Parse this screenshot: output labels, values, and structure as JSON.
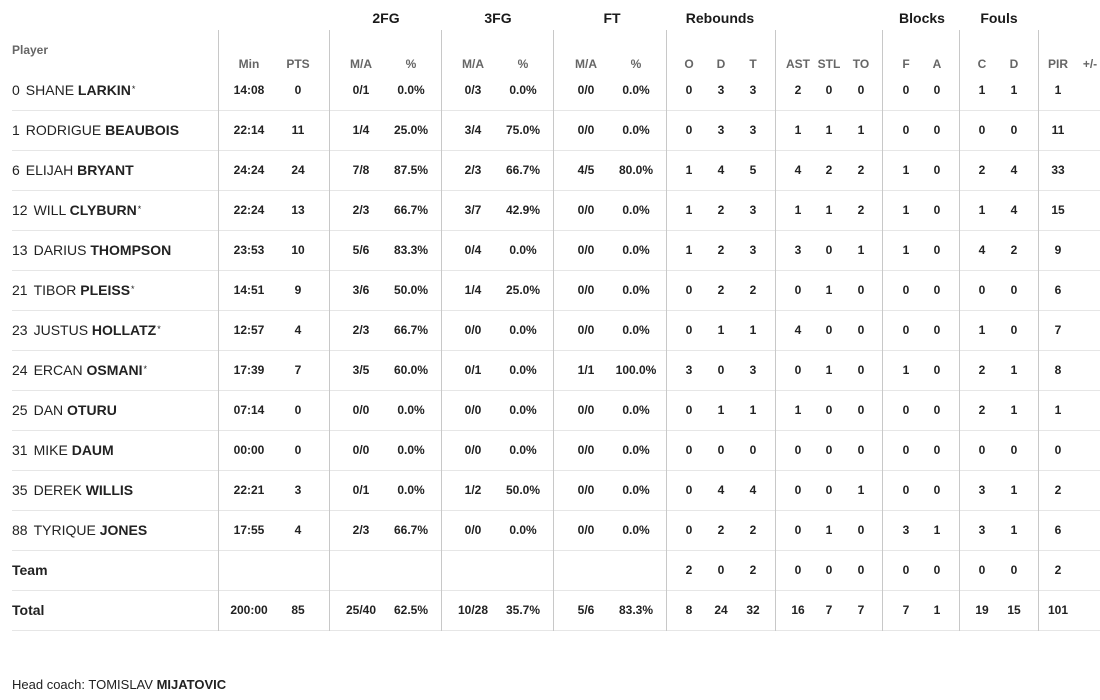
{
  "groups": {
    "fg2": "2FG",
    "fg3": "3FG",
    "ft": "FT",
    "reb": "Rebounds",
    "blk": "Blocks",
    "fls": "Fouls"
  },
  "headers": {
    "player": "Player",
    "min": "Min",
    "pts": "PTS",
    "fg2_ma": "M/A",
    "fg2_pct": "%",
    "fg3_ma": "M/A",
    "fg3_pct": "%",
    "ft_ma": "M/A",
    "ft_pct": "%",
    "o": "O",
    "d": "D",
    "t": "T",
    "ast": "AST",
    "stl": "STL",
    "to": "TO",
    "bf": "F",
    "ba": "A",
    "fc": "C",
    "fd": "D",
    "pir": "PIR",
    "pm": "+/-"
  },
  "players": [
    {
      "num": "0",
      "first": "Shane",
      "last": "Larkin",
      "star": "*",
      "min": "14:08",
      "pts": "0",
      "fg2_ma": "0/1",
      "fg2_pct": "0.0%",
      "fg3_ma": "0/3",
      "fg3_pct": "0.0%",
      "ft_ma": "0/0",
      "ft_pct": "0.0%",
      "o": "0",
      "d": "3",
      "t": "3",
      "ast": "2",
      "stl": "0",
      "to": "0",
      "bf": "0",
      "ba": "0",
      "fc": "1",
      "fd": "1",
      "pir": "1",
      "pm": ""
    },
    {
      "num": "1",
      "first": "Rodrigue",
      "last": "Beaubois",
      "star": "",
      "min": "22:14",
      "pts": "11",
      "fg2_ma": "1/4",
      "fg2_pct": "25.0%",
      "fg3_ma": "3/4",
      "fg3_pct": "75.0%",
      "ft_ma": "0/0",
      "ft_pct": "0.0%",
      "o": "0",
      "d": "3",
      "t": "3",
      "ast": "1",
      "stl": "1",
      "to": "1",
      "bf": "0",
      "ba": "0",
      "fc": "0",
      "fd": "0",
      "pir": "11",
      "pm": ""
    },
    {
      "num": "6",
      "first": "Elijah",
      "last": "Bryant",
      "star": "",
      "min": "24:24",
      "pts": "24",
      "fg2_ma": "7/8",
      "fg2_pct": "87.5%",
      "fg3_ma": "2/3",
      "fg3_pct": "66.7%",
      "ft_ma": "4/5",
      "ft_pct": "80.0%",
      "o": "1",
      "d": "4",
      "t": "5",
      "ast": "4",
      "stl": "2",
      "to": "2",
      "bf": "1",
      "ba": "0",
      "fc": "2",
      "fd": "4",
      "pir": "33",
      "pm": ""
    },
    {
      "num": "12",
      "first": "Will",
      "last": "Clyburn",
      "star": "*",
      "min": "22:24",
      "pts": "13",
      "fg2_ma": "2/3",
      "fg2_pct": "66.7%",
      "fg3_ma": "3/7",
      "fg3_pct": "42.9%",
      "ft_ma": "0/0",
      "ft_pct": "0.0%",
      "o": "1",
      "d": "2",
      "t": "3",
      "ast": "1",
      "stl": "1",
      "to": "2",
      "bf": "1",
      "ba": "0",
      "fc": "1",
      "fd": "4",
      "pir": "15",
      "pm": ""
    },
    {
      "num": "13",
      "first": "Darius",
      "last": "Thompson",
      "star": "",
      "min": "23:53",
      "pts": "10",
      "fg2_ma": "5/6",
      "fg2_pct": "83.3%",
      "fg3_ma": "0/4",
      "fg3_pct": "0.0%",
      "ft_ma": "0/0",
      "ft_pct": "0.0%",
      "o": "1",
      "d": "2",
      "t": "3",
      "ast": "3",
      "stl": "0",
      "to": "1",
      "bf": "1",
      "ba": "0",
      "fc": "4",
      "fd": "2",
      "pir": "9",
      "pm": ""
    },
    {
      "num": "21",
      "first": "Tibor",
      "last": "Pleiss",
      "star": "*",
      "min": "14:51",
      "pts": "9",
      "fg2_ma": "3/6",
      "fg2_pct": "50.0%",
      "fg3_ma": "1/4",
      "fg3_pct": "25.0%",
      "ft_ma": "0/0",
      "ft_pct": "0.0%",
      "o": "0",
      "d": "2",
      "t": "2",
      "ast": "0",
      "stl": "1",
      "to": "0",
      "bf": "0",
      "ba": "0",
      "fc": "0",
      "fd": "0",
      "pir": "6",
      "pm": ""
    },
    {
      "num": "23",
      "first": "Justus",
      "last": "Hollatz",
      "star": "*",
      "min": "12:57",
      "pts": "4",
      "fg2_ma": "2/3",
      "fg2_pct": "66.7%",
      "fg3_ma": "0/0",
      "fg3_pct": "0.0%",
      "ft_ma": "0/0",
      "ft_pct": "0.0%",
      "o": "0",
      "d": "1",
      "t": "1",
      "ast": "4",
      "stl": "0",
      "to": "0",
      "bf": "0",
      "ba": "0",
      "fc": "1",
      "fd": "0",
      "pir": "7",
      "pm": ""
    },
    {
      "num": "24",
      "first": "Ercan",
      "last": "Osmani",
      "star": "*",
      "min": "17:39",
      "pts": "7",
      "fg2_ma": "3/5",
      "fg2_pct": "60.0%",
      "fg3_ma": "0/1",
      "fg3_pct": "0.0%",
      "ft_ma": "1/1",
      "ft_pct": "100.0%",
      "o": "3",
      "d": "0",
      "t": "3",
      "ast": "0",
      "stl": "1",
      "to": "0",
      "bf": "1",
      "ba": "0",
      "fc": "2",
      "fd": "1",
      "pir": "8",
      "pm": ""
    },
    {
      "num": "25",
      "first": "Dan",
      "last": "Oturu",
      "star": "",
      "min": "07:14",
      "pts": "0",
      "fg2_ma": "0/0",
      "fg2_pct": "0.0%",
      "fg3_ma": "0/0",
      "fg3_pct": "0.0%",
      "ft_ma": "0/0",
      "ft_pct": "0.0%",
      "o": "0",
      "d": "1",
      "t": "1",
      "ast": "1",
      "stl": "0",
      "to": "0",
      "bf": "0",
      "ba": "0",
      "fc": "2",
      "fd": "1",
      "pir": "1",
      "pm": ""
    },
    {
      "num": "31",
      "first": "Mike",
      "last": "Daum",
      "star": "",
      "min": "00:00",
      "pts": "0",
      "fg2_ma": "0/0",
      "fg2_pct": "0.0%",
      "fg3_ma": "0/0",
      "fg3_pct": "0.0%",
      "ft_ma": "0/0",
      "ft_pct": "0.0%",
      "o": "0",
      "d": "0",
      "t": "0",
      "ast": "0",
      "stl": "0",
      "to": "0",
      "bf": "0",
      "ba": "0",
      "fc": "0",
      "fd": "0",
      "pir": "0",
      "pm": ""
    },
    {
      "num": "35",
      "first": "Derek",
      "last": "Willis",
      "star": "",
      "min": "22:21",
      "pts": "3",
      "fg2_ma": "0/1",
      "fg2_pct": "0.0%",
      "fg3_ma": "1/2",
      "fg3_pct": "50.0%",
      "ft_ma": "0/0",
      "ft_pct": "0.0%",
      "o": "0",
      "d": "4",
      "t": "4",
      "ast": "0",
      "stl": "0",
      "to": "1",
      "bf": "0",
      "ba": "0",
      "fc": "3",
      "fd": "1",
      "pir": "2",
      "pm": ""
    },
    {
      "num": "88",
      "first": "Tyrique",
      "last": "Jones",
      "star": "",
      "min": "17:55",
      "pts": "4",
      "fg2_ma": "2/3",
      "fg2_pct": "66.7%",
      "fg3_ma": "0/0",
      "fg3_pct": "0.0%",
      "ft_ma": "0/0",
      "ft_pct": "0.0%",
      "o": "0",
      "d": "2",
      "t": "2",
      "ast": "0",
      "stl": "1",
      "to": "0",
      "bf": "3",
      "ba": "1",
      "fc": "3",
      "fd": "1",
      "pir": "6",
      "pm": ""
    }
  ],
  "team": {
    "label": "Team",
    "min": "",
    "pts": "",
    "fg2_ma": "",
    "fg2_pct": "",
    "fg3_ma": "",
    "fg3_pct": "",
    "ft_ma": "",
    "ft_pct": "",
    "o": "2",
    "d": "0",
    "t": "2",
    "ast": "0",
    "stl": "0",
    "to": "0",
    "bf": "0",
    "ba": "0",
    "fc": "0",
    "fd": "0",
    "pir": "2",
    "pm": ""
  },
  "total": {
    "label": "Total",
    "min": "200:00",
    "pts": "85",
    "fg2_ma": "25/40",
    "fg2_pct": "62.5%",
    "fg3_ma": "10/28",
    "fg3_pct": "35.7%",
    "ft_ma": "5/6",
    "ft_pct": "83.3%",
    "o": "8",
    "d": "24",
    "t": "32",
    "ast": "16",
    "stl": "7",
    "to": "7",
    "bf": "7",
    "ba": "1",
    "fc": "19",
    "fd": "15",
    "pir": "101",
    "pm": ""
  },
  "coach": {
    "label": "Head coach:",
    "first": "Tomislav",
    "last": "Mijatovic"
  }
}
